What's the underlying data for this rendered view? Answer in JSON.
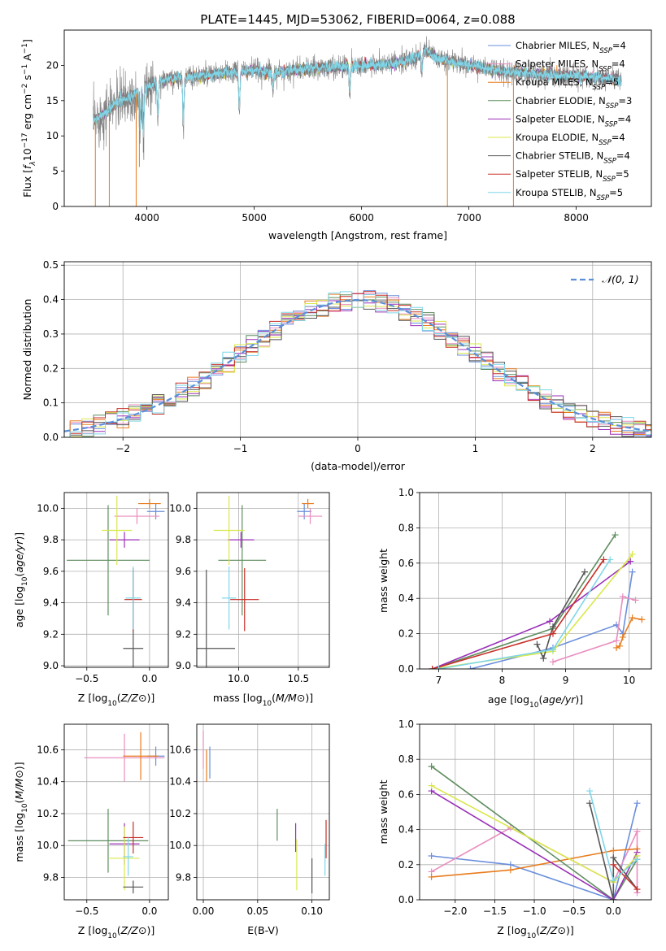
{
  "figure_title": "PLATE=1445, MJD=53062, FIBERID=0064, z=0.088",
  "colors": {
    "Chabrier MILES": "#6a8fdc",
    "Salpeter MILES": "#e98dbf",
    "Kroupa MILES": "#e87c1e",
    "Chabrier ELODIE": "#5f8d5f",
    "Salpeter ELODIE": "#9a2fb8",
    "Kroupa ELODIE": "#d9e84a",
    "Chabrier STELIB": "#555555",
    "Salpeter STELIB": "#c8302a",
    "Kroupa STELIB": "#7fd6e8"
  },
  "chart_data": [
    {
      "id": "spectrum",
      "type": "line",
      "title": "PLATE=1445, MJD=53062, FIBERID=0064, z=0.088",
      "xlabel": "wavelength [Angstrom, rest frame]",
      "ylabel": "Flux [f_λ 10^-17 erg cm^-2 s^-1 A^-1]",
      "xlim": [
        3230,
        8700
      ],
      "ylim": [
        0,
        25
      ],
      "xticks": [
        4000,
        5000,
        6000,
        7000,
        8000
      ],
      "yticks": [
        0,
        5,
        10,
        15,
        20
      ],
      "legend_position": "upper-right",
      "legend": [
        {
          "label": "Chabrier MILES, N",
          "sub": "SSP",
          "suffix": "=4"
        },
        {
          "label": "Salpeter MILES, N",
          "sub": "SSP",
          "suffix": "=4"
        },
        {
          "label": "Kroupa MILES, N",
          "sub": "SSP",
          "suffix": "=5"
        },
        {
          "label": "Chabrier ELODIE, N",
          "sub": "SSP",
          "suffix": "=3"
        },
        {
          "label": "Salpeter ELODIE, N",
          "sub": "SSP",
          "suffix": "=4"
        },
        {
          "label": "Kroupa ELODIE, N",
          "sub": "SSP",
          "suffix": "=4"
        },
        {
          "label": "Chabrier STELIB, N",
          "sub": "SSP",
          "suffix": "=4"
        },
        {
          "label": "Salpeter STELIB, N",
          "sub": "SSP",
          "suffix": "=5"
        },
        {
          "label": "Kroupa STELIB, N",
          "sub": "SSP",
          "suffix": "=5"
        }
      ],
      "continuum_points": [
        [
          3500,
          12.0
        ],
        [
          3700,
          14.5
        ],
        [
          3900,
          16.0
        ],
        [
          4000,
          17.0
        ],
        [
          4200,
          18.0
        ],
        [
          4500,
          18.5
        ],
        [
          4800,
          19.0
        ],
        [
          5000,
          19.3
        ],
        [
          5200,
          19.0
        ],
        [
          5500,
          19.5
        ],
        [
          5800,
          19.8
        ],
        [
          6000,
          20.0
        ],
        [
          6300,
          20.2
        ],
        [
          6500,
          21.0
        ],
        [
          6600,
          22.2
        ],
        [
          6700,
          21.0
        ],
        [
          7000,
          20.0
        ],
        [
          7300,
          19.2
        ],
        [
          7600,
          18.8
        ],
        [
          8000,
          18.5
        ],
        [
          8400,
          18.0
        ]
      ],
      "absorption_features": [
        [
          3934,
          10.0
        ],
        [
          3968,
          9.0
        ],
        [
          4102,
          12.0
        ],
        [
          4340,
          11.0
        ],
        [
          4861,
          13.0
        ],
        [
          5175,
          16.5
        ],
        [
          5890,
          16.0
        ],
        [
          6563,
          19.0
        ],
        [
          8500,
          15.5
        ],
        [
          8542,
          15.0
        ],
        [
          8662,
          15.5
        ]
      ],
      "model_drops": [
        [
          3520,
          0
        ],
        [
          3650,
          0
        ],
        [
          3900,
          0
        ],
        [
          3930,
          5.6
        ],
        [
          6800,
          0
        ],
        [
          7415,
          0
        ]
      ],
      "data_color": "#7f7f7f",
      "model_color": "#7fd6e8"
    },
    {
      "id": "residuals",
      "type": "step-histogram",
      "xlabel": "(data-model)/error",
      "ylabel": "Normed distribution",
      "xlim": [
        -2.5,
        2.5
      ],
      "ylim": [
        0,
        0.51
      ],
      "xticks": [
        -2,
        -1,
        0,
        1,
        2
      ],
      "xtick_labels": [
        "−2",
        "−1",
        "0",
        "1",
        "2"
      ],
      "yticks": [
        0.0,
        0.1,
        0.2,
        0.3,
        0.4,
        0.5
      ],
      "ytick_labels": [
        "0.0",
        "0.1",
        "0.2",
        "0.3",
        "0.4",
        "0.5"
      ],
      "bin_width": 0.1,
      "gaussian_label": "𝒩(0, 1)",
      "gaussian_color": "#5b8fd9",
      "legend_position": "upper-right"
    },
    {
      "id": "age-vs-Z",
      "type": "errorbar",
      "xlabel": "Z [log10(Z/Z⊙)]",
      "ylabel": "age  [log10(age/yr)]",
      "xlim": [
        -0.68,
        0.15
      ],
      "ylim": [
        8.99,
        10.1
      ],
      "xticks": [
        -0.5,
        0.0
      ],
      "xtick_labels": [
        "−0.5",
        "0.0"
      ],
      "yticks": [
        9.0,
        9.2,
        9.4,
        9.6,
        9.8,
        10.0
      ],
      "ytick_labels": [
        "9.0",
        "9.2",
        "9.4",
        "9.6",
        "9.8",
        "10.0"
      ],
      "points": [
        {
          "model": "Chabrier MILES",
          "x": 0.05,
          "y": 9.98,
          "xe": 0.07,
          "ye": 0.05
        },
        {
          "model": "Salpeter MILES",
          "x": -0.1,
          "y": 9.95,
          "xe": 0.18,
          "ye": 0.05
        },
        {
          "model": "Kroupa MILES",
          "x": 0.0,
          "y": 10.03,
          "xe": 0.09,
          "ye": 0.03
        },
        {
          "model": "Chabrier ELODIE",
          "x": -0.33,
          "y": 9.67,
          "xe": 0.33,
          "ye": 0.35
        },
        {
          "model": "Salpeter ELODIE",
          "x": -0.2,
          "y": 9.8,
          "xe": 0.12,
          "ye": 0.05
        },
        {
          "model": "Kroupa ELODIE",
          "x": -0.26,
          "y": 9.86,
          "xe": 0.12,
          "ye": 0.22
        },
        {
          "model": "Chabrier STELIB",
          "x": -0.13,
          "y": 9.11,
          "xe": 0.08,
          "ye": 0.5
        },
        {
          "model": "Salpeter STELIB",
          "x": -0.13,
          "y": 9.42,
          "xe": 0.07,
          "ye": 0.2
        },
        {
          "model": "Kroupa STELIB",
          "x": -0.13,
          "y": 9.43,
          "xe": 0.06,
          "ye": 0.2
        }
      ]
    },
    {
      "id": "age-vs-mass",
      "type": "errorbar",
      "xlabel": "mass [log10(M/M⊙)]",
      "ylabel": "",
      "xlim": [
        9.65,
        10.76
      ],
      "ylim": [
        8.99,
        10.1
      ],
      "xticks": [
        10.0,
        10.5
      ],
      "xtick_labels": [
        "10.0",
        "10.5"
      ],
      "yticks": [
        9.0,
        9.2,
        9.4,
        9.6,
        9.8,
        10.0
      ],
      "ytick_labels": [
        "9.0",
        "9.2",
        "9.4",
        "9.6",
        "9.8",
        "10.0"
      ],
      "points": [
        {
          "model": "Chabrier MILES",
          "x": 10.55,
          "y": 9.98,
          "xe": 0.06,
          "ye": 0.05
        },
        {
          "model": "Salpeter MILES",
          "x": 10.6,
          "y": 9.95,
          "xe": 0.1,
          "ye": 0.05
        },
        {
          "model": "Kroupa MILES",
          "x": 10.58,
          "y": 10.03,
          "xe": 0.05,
          "ye": 0.03
        },
        {
          "model": "Chabrier ELODIE",
          "x": 10.03,
          "y": 9.67,
          "xe": 0.2,
          "ye": 0.35
        },
        {
          "model": "Salpeter ELODIE",
          "x": 10.02,
          "y": 9.8,
          "xe": 0.11,
          "ye": 0.05
        },
        {
          "model": "Kroupa ELODIE",
          "x": 9.92,
          "y": 9.86,
          "xe": 0.13,
          "ye": 0.22
        },
        {
          "model": "Chabrier STELIB",
          "x": 9.73,
          "y": 9.11,
          "xe": 0.24,
          "ye": 0.5
        },
        {
          "model": "Salpeter STELIB",
          "x": 10.05,
          "y": 9.42,
          "xe": 0.12,
          "ye": 0.2
        },
        {
          "model": "Kroupa STELIB",
          "x": 9.92,
          "y": 9.43,
          "xe": 0.06,
          "ye": 0.2
        }
      ]
    },
    {
      "id": "massweight-vs-age",
      "type": "line",
      "xlabel": "age  [log10(age/yr)]",
      "ylabel": "mass weight",
      "xlim": [
        6.7,
        10.35
      ],
      "ylim": [
        0,
        1.0
      ],
      "xticks": [
        7,
        8,
        9,
        10
      ],
      "xtick_labels": [
        "7",
        "8",
        "9",
        "10"
      ],
      "yticks": [
        0.0,
        0.2,
        0.4,
        0.6,
        0.8,
        1.0
      ],
      "ytick_labels": [
        "0.0",
        "0.2",
        "0.4",
        "0.6",
        "0.8",
        "1.0"
      ],
      "series": [
        {
          "model": "Chabrier MILES",
          "x": [
            7.5,
            8.8,
            9.8,
            9.9,
            10.05
          ],
          "y": [
            0.0,
            0.12,
            0.25,
            0.2,
            0.55
          ]
        },
        {
          "model": "Salpeter MILES",
          "x": [
            8.8,
            9.8,
            9.9,
            10.1
          ],
          "y": [
            0.04,
            0.16,
            0.41,
            0.39
          ]
        },
        {
          "model": "Kroupa MILES",
          "x": [
            9.8,
            9.85,
            9.9,
            10.05,
            10.2
          ],
          "y": [
            0.12,
            0.13,
            0.18,
            0.29,
            0.28
          ]
        },
        {
          "model": "Chabrier ELODIE",
          "x": [
            6.9,
            8.8,
            9.78
          ],
          "y": [
            0.0,
            0.23,
            0.76
          ]
        },
        {
          "model": "Salpeter ELODIE",
          "x": [
            6.9,
            8.75,
            10.02
          ],
          "y": [
            0.0,
            0.27,
            0.61
          ]
        },
        {
          "model": "Kroupa ELODIE",
          "x": [
            6.9,
            8.8,
            10.05
          ],
          "y": [
            0.0,
            0.1,
            0.65
          ]
        },
        {
          "model": "Chabrier STELIB",
          "x": [
            8.55,
            8.65,
            8.8,
            9.3
          ],
          "y": [
            0.14,
            0.06,
            0.24,
            0.55
          ]
        },
        {
          "model": "Salpeter STELIB",
          "x": [
            6.9,
            8.8,
            9.6
          ],
          "y": [
            0.0,
            0.2,
            0.62
          ]
        },
        {
          "model": "Kroupa STELIB",
          "x": [
            7.0,
            8.8,
            9.7
          ],
          "y": [
            0.0,
            0.11,
            0.62
          ]
        }
      ]
    },
    {
      "id": "mass-vs-Z",
      "type": "errorbar",
      "xlabel": "Z [log10(Z/Z⊙)]",
      "ylabel": "mass [log10(M/M⊙)]",
      "xlim": [
        -0.68,
        0.15
      ],
      "ylim": [
        9.66,
        10.76
      ],
      "xticks": [
        -0.5,
        0.0
      ],
      "xtick_labels": [
        "−0.5",
        "0.0"
      ],
      "yticks": [
        9.8,
        10.0,
        10.2,
        10.4,
        10.6
      ],
      "ytick_labels": [
        "9.8",
        "10.0",
        "10.2",
        "10.4",
        "10.6"
      ],
      "points": [
        {
          "model": "Chabrier MILES",
          "x": 0.05,
          "y": 10.56,
          "xe": 0.07,
          "ye": 0.06
        },
        {
          "model": "Salpeter MILES",
          "x": -0.2,
          "y": 10.55,
          "xe": 0.32,
          "ye": 0.15
        },
        {
          "model": "Kroupa MILES",
          "x": -0.07,
          "y": 10.56,
          "xe": 0.14,
          "ye": 0.15
        },
        {
          "model": "Chabrier ELODIE",
          "x": -0.33,
          "y": 10.03,
          "xe": 0.32,
          "ye": 0.2
        },
        {
          "model": "Salpeter ELODIE",
          "x": -0.2,
          "y": 10.01,
          "xe": 0.12,
          "ye": 0.13
        },
        {
          "model": "Kroupa ELODIE",
          "x": -0.2,
          "y": 9.92,
          "xe": 0.12,
          "ye": 0.2
        },
        {
          "model": "Chabrier STELIB",
          "x": -0.13,
          "y": 9.74,
          "xe": 0.08,
          "ye": 0.04
        },
        {
          "model": "Salpeter STELIB",
          "x": -0.13,
          "y": 10.05,
          "xe": 0.08,
          "ye": 0.1
        },
        {
          "model": "Kroupa STELIB",
          "x": -0.17,
          "y": 9.93,
          "xe": 0.04,
          "ye": 0.12
        }
      ]
    },
    {
      "id": "mass-vs-ebv",
      "type": "errorbar",
      "xlabel": "E(B-V)",
      "ylabel": "",
      "xlim": [
        -0.006,
        0.116
      ],
      "ylim": [
        9.66,
        10.76
      ],
      "xticks": [
        0.0,
        0.05,
        0.1
      ],
      "xtick_labels": [
        "0.00",
        "0.05",
        "0.10"
      ],
      "yticks": [
        9.8,
        10.0,
        10.2,
        10.4,
        10.6
      ],
      "ytick_labels": [
        "9.8",
        "10.0",
        "10.2",
        "10.4",
        "10.6"
      ],
      "points": [
        {
          "model": "Chabrier MILES",
          "x": 0.006,
          "y": 10.52,
          "xe": 0,
          "ye": 0.1
        },
        {
          "model": "Salpeter MILES",
          "x": 0.0,
          "y": 10.6,
          "xe": 0,
          "ye": 0.12
        },
        {
          "model": "Kroupa MILES",
          "x": 0.003,
          "y": 10.5,
          "xe": 0,
          "ye": 0.1
        },
        {
          "model": "Chabrier ELODIE",
          "x": 0.068,
          "y": 10.13,
          "xe": 0,
          "ye": 0.1
        },
        {
          "model": "Salpeter ELODIE",
          "x": 0.085,
          "y": 10.05,
          "xe": 0,
          "ye": 0.09
        },
        {
          "model": "Kroupa ELODIE",
          "x": 0.086,
          "y": 9.88,
          "xe": 0,
          "ye": 0.16
        },
        {
          "model": "Chabrier STELIB",
          "x": 0.1,
          "y": 9.81,
          "xe": 0,
          "ye": 0.11
        },
        {
          "model": "Salpeter STELIB",
          "x": 0.113,
          "y": 10.04,
          "xe": 0,
          "ye": 0.12
        },
        {
          "model": "Kroupa STELIB",
          "x": 0.112,
          "y": 9.91,
          "xe": 0,
          "ye": 0.1
        }
      ]
    },
    {
      "id": "massweight-vs-Z",
      "type": "line",
      "xlabel": "Z [log10(Z/Z⊙)]",
      "ylabel": "mass weight",
      "xlim": [
        -2.45,
        0.48
      ],
      "ylim": [
        0,
        1.0
      ],
      "xticks": [
        -2.0,
        -1.5,
        -1.0,
        -0.5,
        0.0
      ],
      "xtick_labels": [
        "−2.0",
        "−1.5",
        "−1.0",
        "−0.5",
        "0.0"
      ],
      "yticks": [
        0.0,
        0.2,
        0.4,
        0.6,
        0.8,
        1.0
      ],
      "ytick_labels": [
        "0.0",
        "0.2",
        "0.4",
        "0.6",
        "0.8",
        "1.0"
      ],
      "series": [
        {
          "model": "Chabrier MILES",
          "x": [
            -2.3,
            -1.3,
            0.0,
            0.3
          ],
          "y": [
            0.25,
            0.2,
            0.0,
            0.55
          ]
        },
        {
          "model": "Salpeter MILES",
          "x": [
            -2.3,
            -1.3,
            0.0,
            0.3,
            0.3
          ],
          "y": [
            0.16,
            0.41,
            0.1,
            0.39,
            0.04
          ]
        },
        {
          "model": "Kroupa MILES",
          "x": [
            -2.3,
            -1.3,
            0.0,
            0.3
          ],
          "y": [
            0.13,
            0.17,
            0.28,
            0.29
          ]
        },
        {
          "model": "Chabrier ELODIE",
          "x": [
            -2.3,
            0.0,
            0.3
          ],
          "y": [
            0.76,
            0.0,
            0.23
          ]
        },
        {
          "model": "Salpeter ELODIE",
          "x": [
            -2.3,
            0.0,
            0.3
          ],
          "y": [
            0.62,
            0.0,
            0.27
          ]
        },
        {
          "model": "Kroupa ELODIE",
          "x": [
            -2.3,
            0.0,
            0.3
          ],
          "y": [
            0.65,
            0.1,
            0.25
          ]
        },
        {
          "model": "Chabrier STELIB",
          "x": [
            -0.3,
            0.0,
            0.0,
            0.3
          ],
          "y": [
            0.55,
            0.0,
            0.24,
            0.06
          ]
        },
        {
          "model": "Salpeter STELIB",
          "x": [
            0.0,
            0.3
          ],
          "y": [
            0.2,
            0.06
          ]
        },
        {
          "model": "Kroupa STELIB",
          "x": [
            -0.3,
            0.0,
            0.3
          ],
          "y": [
            0.62,
            0.11,
            0.23
          ]
        }
      ]
    }
  ]
}
